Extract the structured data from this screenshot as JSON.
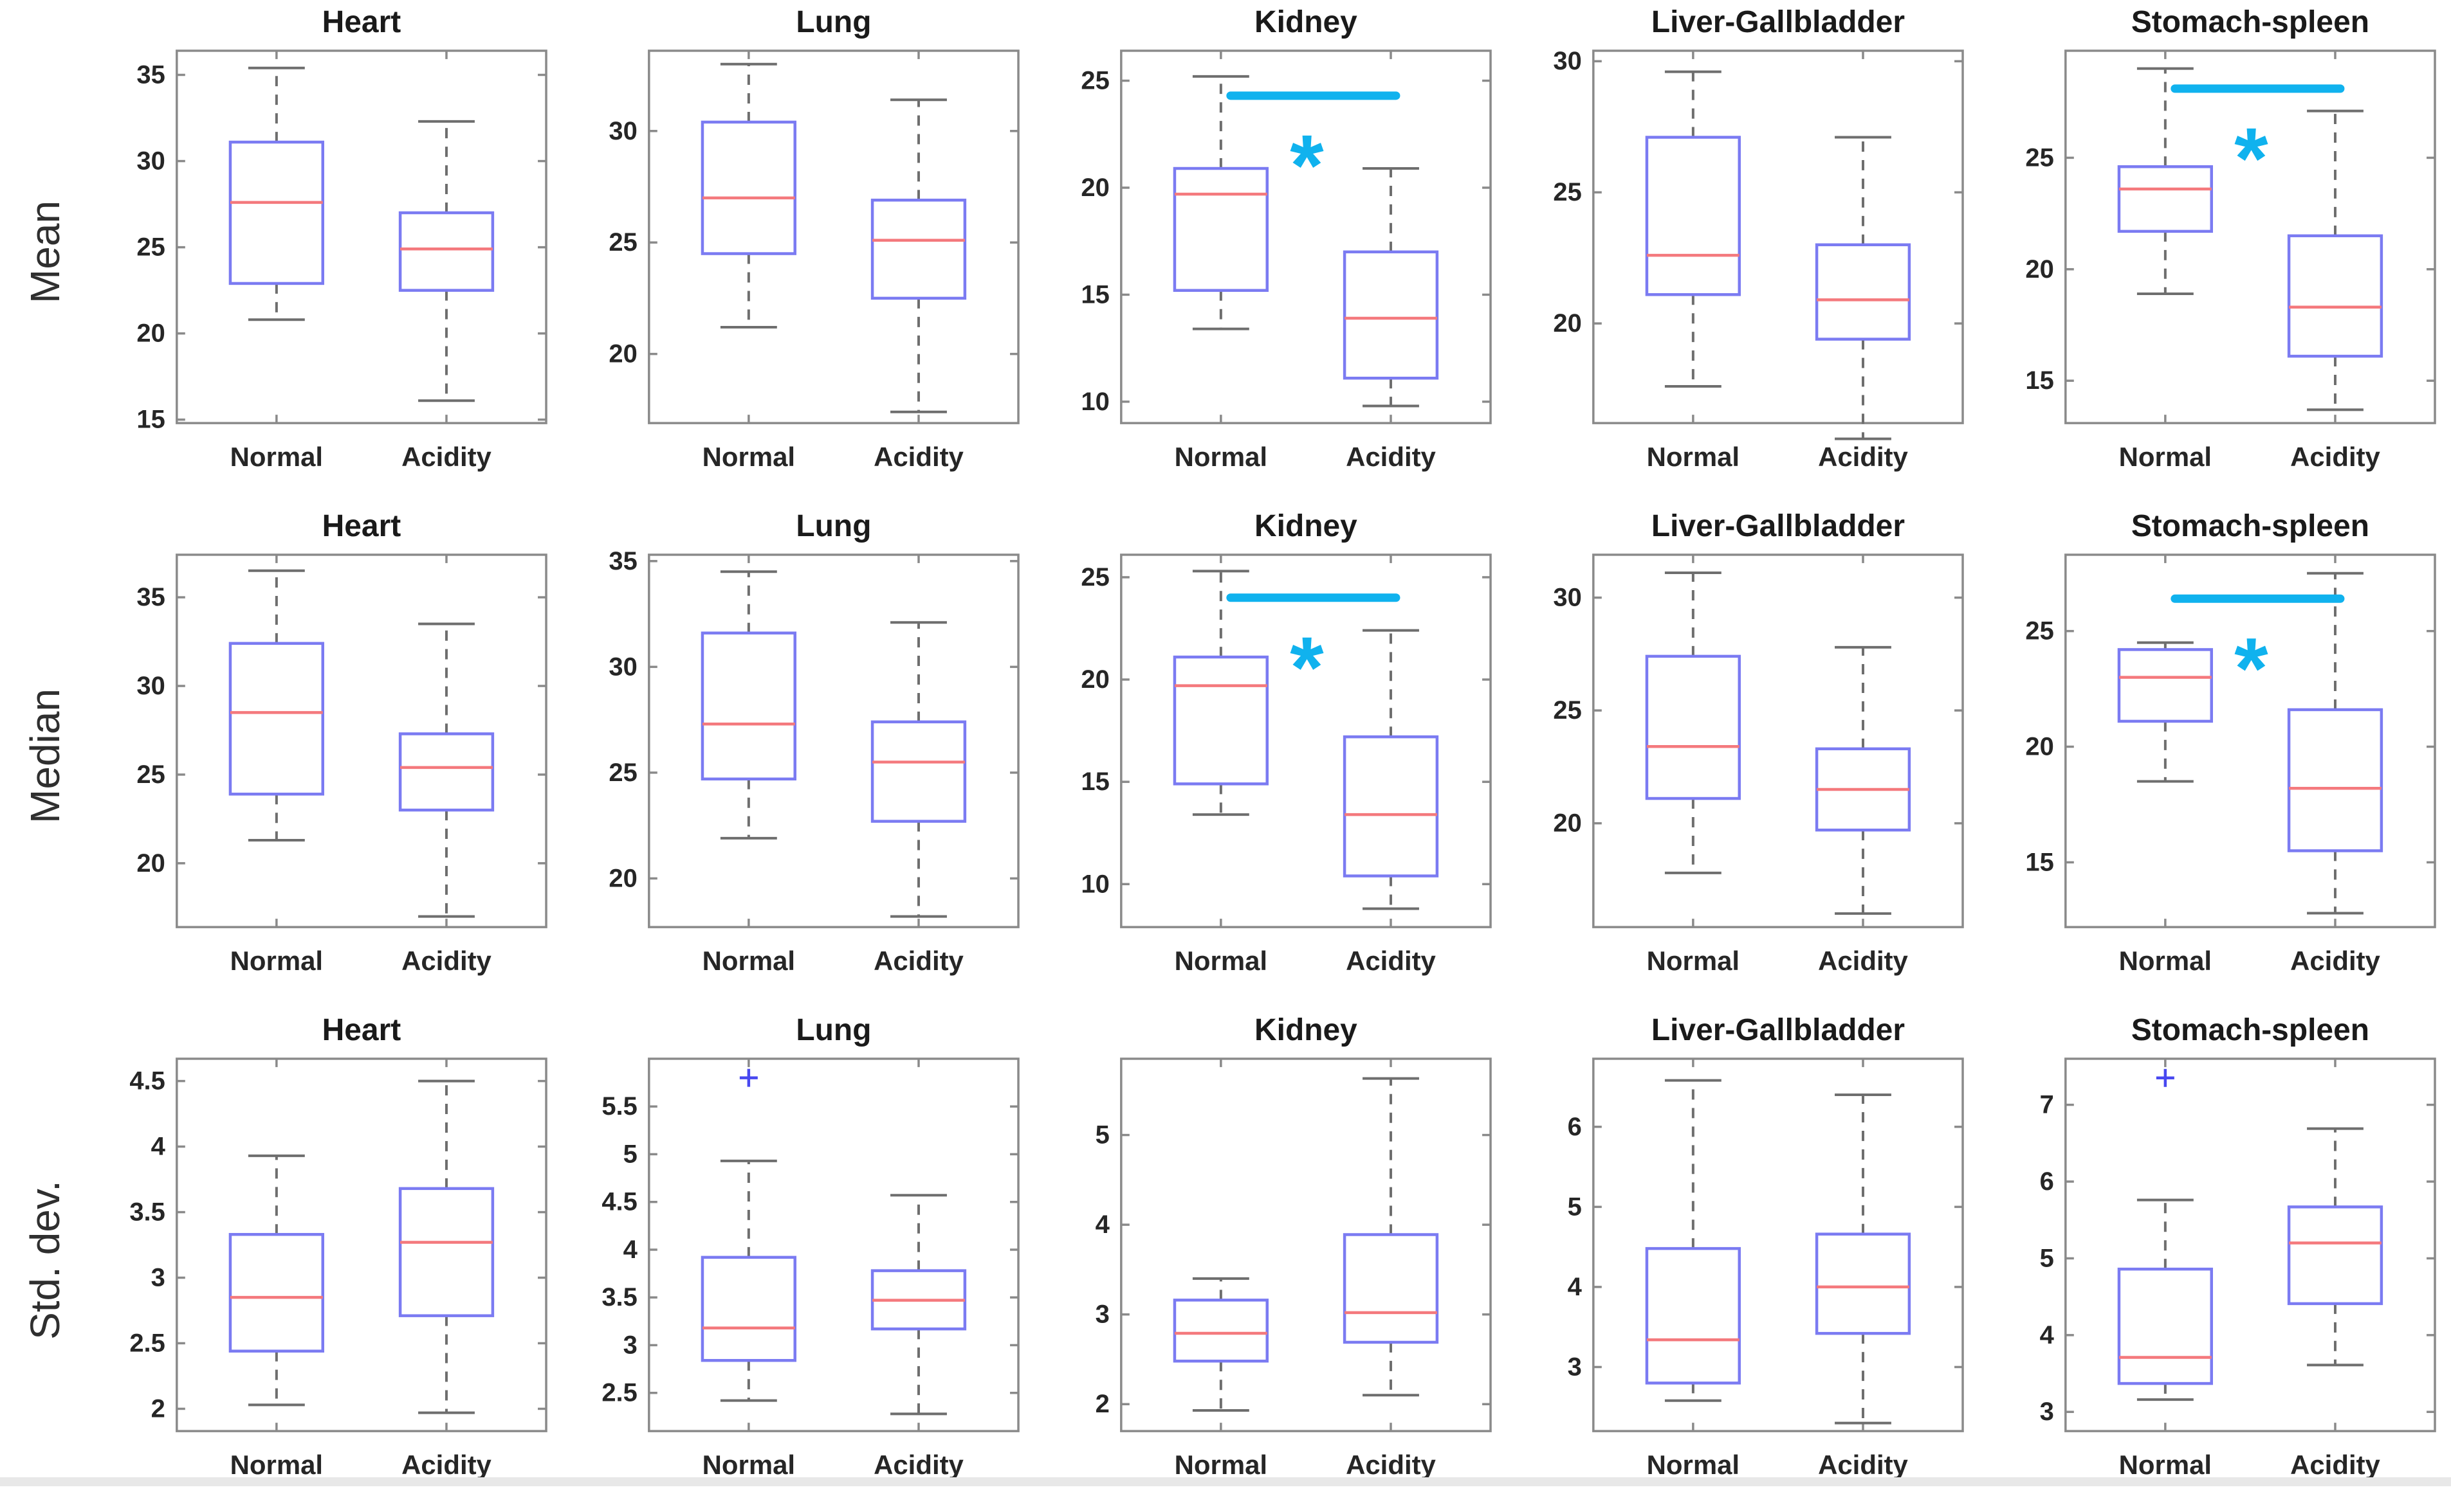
{
  "figure": {
    "row_labels": [
      "Mean",
      "Median",
      "Std. dev."
    ],
    "column_titles": [
      "Heart",
      "Lung",
      "Kidney",
      "Liver-Gallbladder",
      "Stomach-spleen"
    ],
    "categories": [
      "Normal",
      "Acidity"
    ]
  },
  "colors": {
    "background": "#ffffff",
    "box": "#7b7bf2",
    "median": "#f4797d",
    "whisker": "#6e6e6e",
    "cap": "#6e6e6e",
    "axis": "#8a8a8a",
    "significance": "#10b2ee",
    "outlier": "#4848f0",
    "title_text": "#1a1a1a",
    "tick_text": "#262626",
    "row_label_text": "#2f2f2f",
    "bottom_strip": "#e8e8e8"
  },
  "chart_data": [
    {
      "type": "boxplot",
      "row": "Mean",
      "title": "Heart",
      "categories": [
        "Normal",
        "Acidity"
      ],
      "yticks": [
        35,
        30,
        25,
        20,
        15
      ],
      "ylim": [
        14.8,
        36.4
      ],
      "series": [
        {
          "name": "Normal",
          "whisker_low": 20.8,
          "q1": 22.9,
          "median": 27.6,
          "q3": 31.1,
          "whisker_high": 35.4,
          "outliers": []
        },
        {
          "name": "Acidity",
          "whisker_low": 16.1,
          "q1": 22.5,
          "median": 24.9,
          "q3": 27.0,
          "whisker_high": 32.3,
          "outliers": []
        }
      ],
      "significance": {
        "show": false,
        "symbol": "",
        "line_y": null
      }
    },
    {
      "type": "boxplot",
      "row": "Mean",
      "title": "Lung",
      "categories": [
        "Normal",
        "Acidity"
      ],
      "yticks": [
        30,
        25,
        20
      ],
      "ylim": [
        16.9,
        33.6
      ],
      "series": [
        {
          "name": "Normal",
          "whisker_low": 21.2,
          "q1": 24.5,
          "median": 27.0,
          "q3": 30.4,
          "whisker_high": 33.0,
          "outliers": []
        },
        {
          "name": "Acidity",
          "whisker_low": 17.4,
          "q1": 22.5,
          "median": 25.1,
          "q3": 26.9,
          "whisker_high": 31.4,
          "outliers": []
        }
      ],
      "significance": {
        "show": false,
        "symbol": "",
        "line_y": null
      }
    },
    {
      "type": "boxplot",
      "row": "Mean",
      "title": "Kidney",
      "categories": [
        "Normal",
        "Acidity"
      ],
      "yticks": [
        25,
        20,
        15,
        10
      ],
      "ylim": [
        9.0,
        26.4
      ],
      "series": [
        {
          "name": "Normal",
          "whisker_low": 13.4,
          "q1": 15.2,
          "median": 19.7,
          "q3": 20.9,
          "whisker_high": 25.2,
          "outliers": []
        },
        {
          "name": "Acidity",
          "whisker_low": 9.8,
          "q1": 11.1,
          "median": 13.9,
          "q3": 17.0,
          "whisker_high": 20.9,
          "outliers": []
        }
      ],
      "significance": {
        "show": true,
        "symbol": "*",
        "line_y": 24.3
      }
    },
    {
      "type": "boxplot",
      "row": "Mean",
      "title": "Liver-Gallbladder",
      "categories": [
        "Normal",
        "Acidity"
      ],
      "yticks": [
        30,
        25,
        20
      ],
      "ylim": [
        16.2,
        30.4
      ],
      "series": [
        {
          "name": "Normal",
          "whisker_low": 17.6,
          "q1": 21.1,
          "median": 22.6,
          "q3": 27.1,
          "whisker_high": 29.6,
          "outliers": []
        },
        {
          "name": "Acidity",
          "whisker_low": 15.6,
          "q1": 19.4,
          "median": 20.9,
          "q3": 23.0,
          "whisker_high": 27.1,
          "outliers": []
        }
      ],
      "significance": {
        "show": false,
        "symbol": "",
        "line_y": null
      }
    },
    {
      "type": "boxplot",
      "row": "Mean",
      "title": "Stomach-spleen",
      "categories": [
        "Normal",
        "Acidity"
      ],
      "yticks": [
        25,
        20,
        15
      ],
      "ylim": [
        13.1,
        29.8
      ],
      "series": [
        {
          "name": "Normal",
          "whisker_low": 18.9,
          "q1": 21.7,
          "median": 23.6,
          "q3": 24.6,
          "whisker_high": 29.0,
          "outliers": []
        },
        {
          "name": "Acidity",
          "whisker_low": 13.7,
          "q1": 16.1,
          "median": 18.3,
          "q3": 21.5,
          "whisker_high": 27.1,
          "outliers": []
        }
      ],
      "significance": {
        "show": true,
        "symbol": "*",
        "line_y": 28.1
      }
    },
    {
      "type": "boxplot",
      "row": "Median",
      "title": "Heart",
      "categories": [
        "Normal",
        "Acidity"
      ],
      "yticks": [
        35,
        30,
        25,
        20
      ],
      "ylim": [
        16.4,
        37.4
      ],
      "series": [
        {
          "name": "Normal",
          "whisker_low": 21.3,
          "q1": 23.9,
          "median": 28.5,
          "q3": 32.4,
          "whisker_high": 36.5,
          "outliers": []
        },
        {
          "name": "Acidity",
          "whisker_low": 17.0,
          "q1": 23.0,
          "median": 25.4,
          "q3": 27.3,
          "whisker_high": 33.5,
          "outliers": []
        }
      ],
      "significance": {
        "show": false,
        "symbol": "",
        "line_y": null
      }
    },
    {
      "type": "boxplot",
      "row": "Median",
      "title": "Lung",
      "categories": [
        "Normal",
        "Acidity"
      ],
      "yticks": [
        35,
        30,
        25,
        20
      ],
      "ylim": [
        17.7,
        35.3
      ],
      "series": [
        {
          "name": "Normal",
          "whisker_low": 21.9,
          "q1": 24.7,
          "median": 27.3,
          "q3": 31.6,
          "whisker_high": 34.5,
          "outliers": []
        },
        {
          "name": "Acidity",
          "whisker_low": 18.2,
          "q1": 22.7,
          "median": 25.5,
          "q3": 27.4,
          "whisker_high": 32.1,
          "outliers": []
        }
      ],
      "significance": {
        "show": false,
        "symbol": "",
        "line_y": null
      }
    },
    {
      "type": "boxplot",
      "row": "Median",
      "title": "Kidney",
      "categories": [
        "Normal",
        "Acidity"
      ],
      "yticks": [
        25,
        20,
        15,
        10
      ],
      "ylim": [
        7.9,
        26.1
      ],
      "series": [
        {
          "name": "Normal",
          "whisker_low": 13.4,
          "q1": 14.9,
          "median": 19.7,
          "q3": 21.1,
          "whisker_high": 25.3,
          "outliers": []
        },
        {
          "name": "Acidity",
          "whisker_low": 8.8,
          "q1": 10.4,
          "median": 13.4,
          "q3": 17.2,
          "whisker_high": 22.4,
          "outliers": []
        }
      ],
      "significance": {
        "show": true,
        "symbol": "*",
        "line_y": 24.0
      }
    },
    {
      "type": "boxplot",
      "row": "Median",
      "title": "Liver-Gallbladder",
      "categories": [
        "Normal",
        "Acidity"
      ],
      "yticks": [
        30,
        25,
        20
      ],
      "ylim": [
        15.4,
        31.9
      ],
      "series": [
        {
          "name": "Normal",
          "whisker_low": 17.8,
          "q1": 21.1,
          "median": 23.4,
          "q3": 27.4,
          "whisker_high": 31.1,
          "outliers": []
        },
        {
          "name": "Acidity",
          "whisker_low": 16.0,
          "q1": 19.7,
          "median": 21.5,
          "q3": 23.3,
          "whisker_high": 27.8,
          "outliers": []
        }
      ],
      "significance": {
        "show": false,
        "symbol": "",
        "line_y": null
      }
    },
    {
      "type": "boxplot",
      "row": "Median",
      "title": "Stomach-spleen",
      "categories": [
        "Normal",
        "Acidity"
      ],
      "yticks": [
        25,
        20,
        15
      ],
      "ylim": [
        12.2,
        28.3
      ],
      "series": [
        {
          "name": "Normal",
          "whisker_low": 18.5,
          "q1": 21.1,
          "median": 23.0,
          "q3": 24.2,
          "whisker_high": 24.5,
          "outliers": []
        },
        {
          "name": "Acidity",
          "whisker_low": 12.8,
          "q1": 15.5,
          "median": 18.2,
          "q3": 21.6,
          "whisker_high": 27.5,
          "outliers": []
        }
      ],
      "significance": {
        "show": true,
        "symbol": "*",
        "line_y": 26.4
      }
    },
    {
      "type": "boxplot",
      "row": "Std. dev.",
      "title": "Heart",
      "categories": [
        "Normal",
        "Acidity"
      ],
      "yticks": [
        4.5,
        4,
        3.5,
        3,
        2.5,
        2
      ],
      "ylim": [
        1.83,
        4.67
      ],
      "series": [
        {
          "name": "Normal",
          "whisker_low": 2.03,
          "q1": 2.44,
          "median": 2.85,
          "q3": 3.33,
          "whisker_high": 3.93,
          "outliers": []
        },
        {
          "name": "Acidity",
          "whisker_low": 1.97,
          "q1": 2.71,
          "median": 3.27,
          "q3": 3.68,
          "whisker_high": 4.5,
          "outliers": []
        }
      ],
      "significance": {
        "show": false,
        "symbol": "",
        "line_y": null
      }
    },
    {
      "type": "boxplot",
      "row": "Std. dev.",
      "title": "Lung",
      "categories": [
        "Normal",
        "Acidity"
      ],
      "yticks": [
        5.5,
        5,
        4.5,
        4,
        3.5,
        3,
        2.5
      ],
      "ylim": [
        2.1,
        6.0
      ],
      "series": [
        {
          "name": "Normal",
          "whisker_low": 2.42,
          "q1": 2.84,
          "median": 3.18,
          "q3": 3.92,
          "whisker_high": 4.93,
          "outliers": [
            5.8
          ]
        },
        {
          "name": "Acidity",
          "whisker_low": 2.28,
          "q1": 3.17,
          "median": 3.47,
          "q3": 3.78,
          "whisker_high": 4.57,
          "outliers": []
        }
      ],
      "significance": {
        "show": false,
        "symbol": "",
        "line_y": null
      }
    },
    {
      "type": "boxplot",
      "row": "Std. dev.",
      "title": "Kidney",
      "categories": [
        "Normal",
        "Acidity"
      ],
      "yticks": [
        5,
        4,
        3,
        2
      ],
      "ylim": [
        1.7,
        5.85
      ],
      "series": [
        {
          "name": "Normal",
          "whisker_low": 1.93,
          "q1": 2.48,
          "median": 2.79,
          "q3": 3.16,
          "whisker_high": 3.4,
          "outliers": []
        },
        {
          "name": "Acidity",
          "whisker_low": 2.1,
          "q1": 2.69,
          "median": 3.02,
          "q3": 3.89,
          "whisker_high": 5.63,
          "outliers": []
        }
      ],
      "significance": {
        "show": false,
        "symbol": "",
        "line_y": null
      }
    },
    {
      "type": "boxplot",
      "row": "Std. dev.",
      "title": "Liver-Gallbladder",
      "categories": [
        "Normal",
        "Acidity"
      ],
      "yticks": [
        6,
        5,
        4,
        3
      ],
      "ylim": [
        2.2,
        6.85
      ],
      "series": [
        {
          "name": "Normal",
          "whisker_low": 2.58,
          "q1": 2.8,
          "median": 3.34,
          "q3": 4.48,
          "whisker_high": 6.58,
          "outliers": []
        },
        {
          "name": "Acidity",
          "whisker_low": 2.3,
          "q1": 3.42,
          "median": 4.0,
          "q3": 4.66,
          "whisker_high": 6.4,
          "outliers": []
        }
      ],
      "significance": {
        "show": false,
        "symbol": "",
        "line_y": null
      }
    },
    {
      "type": "boxplot",
      "row": "Std. dev.",
      "title": "Stomach-spleen",
      "categories": [
        "Normal",
        "Acidity"
      ],
      "yticks": [
        7,
        6,
        5,
        4,
        3
      ],
      "ylim": [
        2.75,
        7.6
      ],
      "series": [
        {
          "name": "Normal",
          "whisker_low": 3.16,
          "q1": 3.37,
          "median": 3.71,
          "q3": 4.86,
          "whisker_high": 5.76,
          "outliers": [
            7.35
          ]
        },
        {
          "name": "Acidity",
          "whisker_low": 3.61,
          "q1": 4.41,
          "median": 5.2,
          "q3": 5.67,
          "whisker_high": 6.69,
          "outliers": []
        }
      ],
      "significance": {
        "show": false,
        "symbol": "",
        "line_y": null
      }
    }
  ]
}
